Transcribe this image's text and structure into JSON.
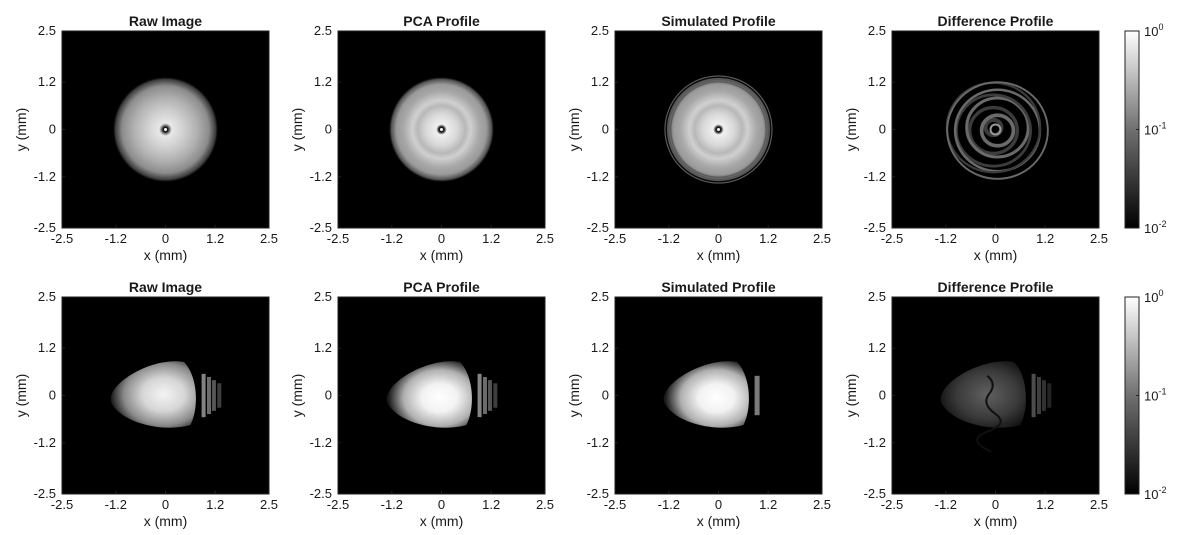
{
  "chart_data": {
    "type": "heatmap",
    "colormap": "gray",
    "scale": "log",
    "grid": false,
    "xlabel": "x (mm)",
    "ylabel": "y (mm)",
    "xlim": [
      -2.5,
      2.5
    ],
    "ylim": [
      -2.5,
      2.5
    ],
    "xticks": [
      "-2.5",
      "-1.2",
      "0",
      "1.2",
      "2.5"
    ],
    "yticks": [
      "2.5",
      "1.2",
      "0",
      "-1.2",
      "-2.5"
    ],
    "colorbar": {
      "range": [
        0.01,
        1
      ],
      "ticks": [
        {
          "base": "10",
          "exp": "0"
        },
        {
          "base": "10",
          "exp": "-1"
        },
        {
          "base": "10",
          "exp": "-2"
        }
      ]
    },
    "rows": [
      {
        "beam": "circular",
        "panels": [
          {
            "title": "Raw Image",
            "kind": "raw"
          },
          {
            "title": "PCA Profile",
            "kind": "pca"
          },
          {
            "title": "Simulated Profile",
            "kind": "sim"
          },
          {
            "title": "Difference Profile",
            "kind": "diff"
          }
        ]
      },
      {
        "beam": "asymmetric",
        "panels": [
          {
            "title": "Raw Image",
            "kind": "raw"
          },
          {
            "title": "PCA Profile",
            "kind": "pca"
          },
          {
            "title": "Simulated Profile",
            "kind": "sim"
          },
          {
            "title": "Difference Profile",
            "kind": "diff"
          }
        ]
      }
    ]
  }
}
